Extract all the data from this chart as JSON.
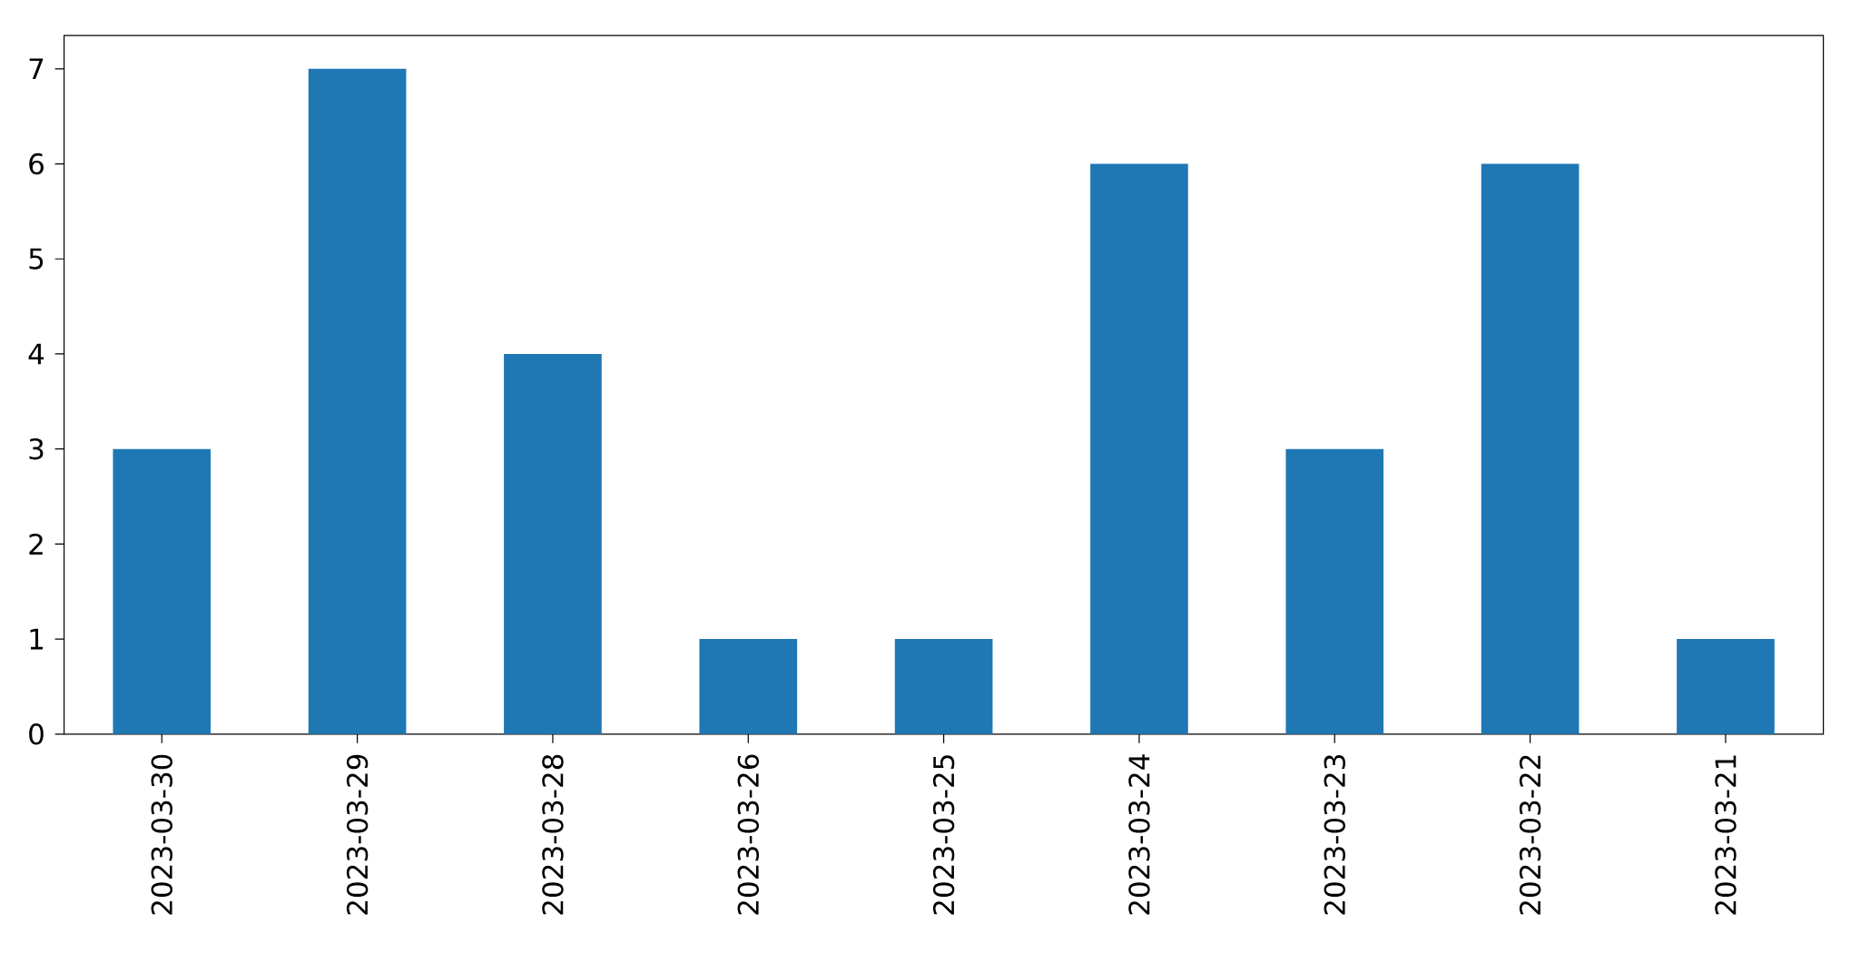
{
  "chart_data": {
    "type": "bar",
    "categories": [
      "2023-03-30",
      "2023-03-29",
      "2023-03-28",
      "2023-03-26",
      "2023-03-25",
      "2023-03-24",
      "2023-03-23",
      "2023-03-22",
      "2023-03-21"
    ],
    "values": [
      3,
      7,
      4,
      1,
      1,
      6,
      3,
      6,
      1
    ],
    "color": "#1f77b4",
    "ylim": [
      0,
      7.35
    ],
    "yticks": [
      0,
      1,
      2,
      3,
      4,
      5,
      6,
      7
    ]
  }
}
